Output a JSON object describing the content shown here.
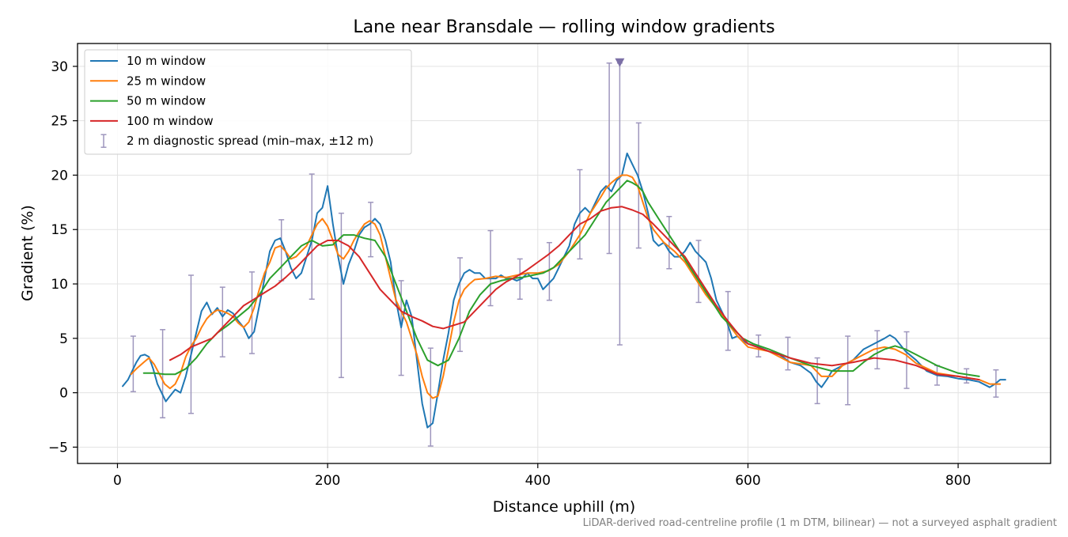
{
  "chart_data": {
    "type": "line",
    "title": "Lane near Bransdale — rolling window gradients",
    "xlabel": "Distance uphill (m)",
    "ylabel": "Gradient (%)",
    "xlim": [
      -38,
      888
    ],
    "ylim": [
      -6.5,
      32.1
    ],
    "xticks": [
      0,
      200,
      400,
      600,
      800
    ],
    "yticks": [
      -5,
      0,
      5,
      10,
      15,
      20,
      25,
      30
    ],
    "grid": true,
    "legend_position": "top-left",
    "footnote": "LiDAR-derived road-centreline profile (1 m DTM, bilinear) — not a surveyed asphalt gradient",
    "series": [
      {
        "name": "10 m window",
        "color": "#1f77b4",
        "x": [
          5,
          10,
          14,
          18,
          22,
          26,
          30,
          34,
          38,
          42,
          46,
          50,
          55,
          60,
          65,
          70,
          75,
          80,
          85,
          90,
          95,
          100,
          105,
          110,
          115,
          120,
          125,
          130,
          135,
          140,
          145,
          150,
          155,
          160,
          165,
          170,
          175,
          180,
          185,
          190,
          195,
          200,
          205,
          210,
          215,
          220,
          225,
          230,
          235,
          240,
          245,
          250,
          255,
          260,
          265,
          270,
          275,
          280,
          285,
          290,
          295,
          300,
          305,
          310,
          315,
          320,
          325,
          330,
          335,
          340,
          345,
          350,
          355,
          360,
          365,
          370,
          375,
          380,
          385,
          390,
          395,
          400,
          405,
          410,
          415,
          420,
          425,
          430,
          435,
          440,
          445,
          450,
          455,
          460,
          465,
          470,
          475,
          480,
          485,
          490,
          495,
          500,
          505,
          510,
          515,
          520,
          525,
          530,
          535,
          540,
          545,
          550,
          555,
          560,
          565,
          570,
          575,
          580,
          585,
          590,
          595,
          600,
          610,
          620,
          630,
          640,
          650,
          660,
          665,
          670,
          675,
          680,
          690,
          700,
          710,
          720,
          730,
          735,
          740,
          750,
          760,
          770,
          780,
          790,
          800,
          810,
          820,
          830,
          835,
          840,
          845
        ],
        "y": [
          0.6,
          1.2,
          2.0,
          2.8,
          3.4,
          3.5,
          3.3,
          2.2,
          0.8,
          0.0,
          -0.8,
          -0.3,
          0.3,
          0.0,
          1.5,
          3.5,
          5.5,
          7.5,
          8.3,
          7.2,
          7.8,
          7.0,
          7.6,
          7.3,
          6.6,
          6.0,
          5.0,
          5.6,
          8.0,
          10.5,
          13.0,
          14.0,
          14.2,
          13.0,
          11.5,
          10.5,
          11.0,
          12.5,
          14.0,
          16.5,
          17.0,
          19.0,
          15.5,
          12.5,
          10.0,
          11.8,
          13.0,
          14.5,
          15.2,
          15.5,
          16.0,
          15.5,
          14.0,
          12.0,
          8.5,
          6.0,
          8.5,
          7.0,
          3.0,
          -1.0,
          -3.2,
          -2.8,
          0.0,
          3.0,
          5.5,
          8.5,
          10.0,
          11.0,
          11.3,
          11.0,
          11.0,
          10.5,
          10.5,
          10.5,
          10.8,
          10.5,
          10.5,
          10.3,
          10.5,
          11.0,
          10.5,
          10.5,
          9.5,
          10.0,
          10.5,
          11.5,
          12.5,
          13.5,
          15.5,
          16.5,
          17.0,
          16.5,
          17.5,
          18.5,
          19.0,
          18.5,
          19.5,
          20.0,
          22.0,
          21.0,
          20.0,
          18.5,
          16.5,
          14.0,
          13.5,
          13.8,
          13.0,
          12.5,
          12.5,
          13.0,
          13.8,
          13.0,
          12.5,
          12.0,
          10.5,
          8.5,
          7.5,
          6.5,
          5.0,
          5.2,
          4.8,
          4.5,
          4.2,
          3.8,
          3.5,
          2.8,
          2.5,
          1.8,
          1.0,
          0.5,
          1.2,
          2.0,
          2.5,
          3.0,
          4.0,
          4.5,
          5.0,
          5.3,
          5.0,
          3.8,
          3.0,
          2.0,
          1.6,
          1.5,
          1.3,
          1.2,
          1.0,
          0.5,
          0.8,
          1.2,
          1.2
        ]
      },
      {
        "name": "25 m window",
        "color": "#ff7f0e",
        "x": [
          13,
          18,
          25,
          30,
          35,
          40,
          45,
          50,
          55,
          60,
          65,
          70,
          75,
          80,
          85,
          90,
          95,
          100,
          105,
          110,
          115,
          120,
          125,
          130,
          135,
          140,
          145,
          150,
          155,
          160,
          165,
          170,
          175,
          180,
          185,
          190,
          195,
          200,
          205,
          210,
          215,
          220,
          225,
          230,
          235,
          240,
          245,
          250,
          255,
          260,
          265,
          270,
          275,
          280,
          285,
          290,
          295,
          300,
          305,
          310,
          315,
          320,
          325,
          330,
          335,
          340,
          350,
          360,
          370,
          380,
          390,
          400,
          410,
          420,
          430,
          440,
          450,
          460,
          465,
          470,
          475,
          480,
          485,
          490,
          495,
          500,
          505,
          510,
          520,
          530,
          540,
          550,
          560,
          570,
          580,
          590,
          600,
          620,
          640,
          660,
          670,
          680,
          690,
          700,
          710,
          720,
          730,
          740,
          750,
          760,
          780,
          800,
          820,
          830,
          840
        ],
        "y": [
          1.7,
          2.2,
          2.8,
          3.2,
          2.6,
          1.7,
          0.8,
          0.4,
          0.8,
          1.8,
          3.3,
          4.3,
          5.0,
          6.0,
          6.8,
          7.3,
          7.6,
          7.5,
          7.3,
          7.0,
          6.4,
          6.0,
          6.5,
          7.8,
          9.5,
          11.0,
          12.0,
          13.3,
          13.5,
          13.0,
          12.3,
          12.5,
          13.0,
          13.5,
          14.5,
          15.5,
          16.0,
          15.3,
          14.0,
          12.7,
          12.3,
          13.0,
          14.0,
          14.8,
          15.5,
          15.8,
          15.5,
          14.5,
          12.5,
          10.5,
          8.5,
          7.5,
          6.5,
          5.0,
          3.5,
          1.5,
          0.0,
          -0.5,
          -0.3,
          1.5,
          4.0,
          6.5,
          8.5,
          9.5,
          10.0,
          10.4,
          10.5,
          10.7,
          10.6,
          10.8,
          11.0,
          11.0,
          11.2,
          11.8,
          13.0,
          14.5,
          16.5,
          18.0,
          18.8,
          19.3,
          19.7,
          20.0,
          20.0,
          19.8,
          19.0,
          17.5,
          16.0,
          15.0,
          13.8,
          13.0,
          12.0,
          10.5,
          9.0,
          7.8,
          6.5,
          5.2,
          4.2,
          3.8,
          2.8,
          2.5,
          1.5,
          1.5,
          2.5,
          3.0,
          3.5,
          4.0,
          4.2,
          4.0,
          3.5,
          2.7,
          1.8,
          1.5,
          1.2,
          0.8,
          0.8
        ]
      },
      {
        "name": "50 m window",
        "color": "#2ca02c",
        "x": [
          25,
          35,
          45,
          55,
          65,
          75,
          85,
          95,
          105,
          115,
          125,
          135,
          145,
          155,
          165,
          175,
          185,
          195,
          205,
          215,
          225,
          235,
          245,
          255,
          265,
          275,
          285,
          295,
          305,
          315,
          325,
          335,
          345,
          355,
          365,
          375,
          385,
          395,
          405,
          415,
          425,
          435,
          445,
          455,
          465,
          475,
          480,
          485,
          490,
          495,
          500,
          505,
          515,
          525,
          535,
          545,
          555,
          565,
          575,
          585,
          595,
          605,
          620,
          640,
          660,
          680,
          700,
          710,
          720,
          730,
          740,
          750,
          760,
          780,
          800,
          820
        ],
        "y": [
          1.8,
          1.8,
          1.7,
          1.7,
          2.2,
          3.2,
          4.5,
          5.5,
          6.2,
          7.0,
          7.8,
          9.0,
          10.5,
          11.5,
          12.5,
          13.5,
          14.0,
          13.5,
          13.6,
          14.5,
          14.5,
          14.2,
          14.0,
          12.5,
          10.0,
          7.5,
          5.0,
          3.0,
          2.5,
          3.0,
          5.0,
          7.5,
          9.0,
          10.0,
          10.3,
          10.5,
          10.6,
          10.8,
          11.0,
          11.5,
          12.5,
          13.5,
          14.5,
          16.0,
          17.5,
          18.5,
          19.0,
          19.5,
          19.3,
          19.0,
          18.5,
          17.5,
          16.0,
          14.5,
          13.0,
          11.5,
          10.0,
          8.5,
          7.0,
          6.0,
          5.0,
          4.5,
          4.0,
          3.2,
          2.5,
          2.0,
          2.0,
          2.8,
          3.5,
          4.0,
          4.3,
          4.0,
          3.5,
          2.5,
          1.8,
          1.5
        ]
      },
      {
        "name": "100 m window",
        "color": "#d62728",
        "x": [
          50,
          60,
          70,
          80,
          90,
          100,
          110,
          120,
          130,
          140,
          150,
          160,
          170,
          180,
          190,
          200,
          210,
          220,
          230,
          240,
          250,
          260,
          270,
          280,
          290,
          300,
          310,
          320,
          330,
          340,
          350,
          360,
          370,
          380,
          390,
          400,
          410,
          420,
          430,
          440,
          450,
          460,
          470,
          480,
          490,
          500,
          510,
          520,
          530,
          540,
          550,
          560,
          570,
          580,
          590,
          600,
          620,
          640,
          660,
          680,
          700,
          720,
          740,
          760,
          780,
          800,
          820
        ],
        "y": [
          3.0,
          3.5,
          4.2,
          4.6,
          5.0,
          6.0,
          7.0,
          8.0,
          8.6,
          9.2,
          9.8,
          10.6,
          11.5,
          12.5,
          13.5,
          14.0,
          14.0,
          13.5,
          12.5,
          11.0,
          9.5,
          8.5,
          7.5,
          7.0,
          6.6,
          6.1,
          5.9,
          6.2,
          6.5,
          7.5,
          8.5,
          9.5,
          10.2,
          10.7,
          11.3,
          12.0,
          12.7,
          13.5,
          14.5,
          15.5,
          16.0,
          16.7,
          17.0,
          17.1,
          16.8,
          16.4,
          15.5,
          14.5,
          13.5,
          12.5,
          11.0,
          9.5,
          8.0,
          6.7,
          5.5,
          4.5,
          3.8,
          3.2,
          2.7,
          2.5,
          2.8,
          3.2,
          3.0,
          2.5,
          1.7,
          1.5,
          1.2
        ]
      }
    ],
    "diagnostic_spread": {
      "name": "2 m diagnostic spread (min–max, ±12 m)",
      "color": "#9e96bd",
      "points": [
        {
          "x": 15,
          "low": 0.1,
          "high": 5.2
        },
        {
          "x": 43,
          "low": -2.3,
          "high": 5.8
        },
        {
          "x": 70,
          "low": -1.9,
          "high": 10.8
        },
        {
          "x": 100,
          "low": 3.3,
          "high": 9.7
        },
        {
          "x": 128,
          "low": 3.6,
          "high": 11.1
        },
        {
          "x": 156,
          "low": 10.3,
          "high": 15.9
        },
        {
          "x": 185,
          "low": 8.6,
          "high": 20.1
        },
        {
          "x": 213,
          "low": 1.4,
          "high": 16.5
        },
        {
          "x": 241,
          "low": 12.5,
          "high": 17.5
        },
        {
          "x": 270,
          "low": 1.6,
          "high": 10.3
        },
        {
          "x": 298,
          "low": -4.9,
          "high": 4.1
        },
        {
          "x": 326,
          "low": 3.8,
          "high": 12.4
        },
        {
          "x": 355,
          "low": 8.0,
          "high": 14.9
        },
        {
          "x": 383,
          "low": 8.6,
          "high": 12.3
        },
        {
          "x": 411,
          "low": 8.5,
          "high": 13.8
        },
        {
          "x": 440,
          "low": 12.3,
          "high": 20.5
        },
        {
          "x": 468,
          "low": 12.8,
          "high": 30.3
        },
        {
          "x": 478,
          "low": 4.4,
          "high": 30.3
        },
        {
          "x": 496,
          "low": 13.3,
          "high": 24.8
        },
        {
          "x": 525,
          "low": 11.4,
          "high": 16.2
        },
        {
          "x": 553,
          "low": 8.3,
          "high": 14.0
        },
        {
          "x": 581,
          "low": 3.9,
          "high": 9.3
        },
        {
          "x": 610,
          "low": 3.3,
          "high": 5.3
        },
        {
          "x": 638,
          "low": 2.1,
          "high": 5.1
        },
        {
          "x": 666,
          "low": -1.0,
          "high": 3.2
        },
        {
          "x": 695,
          "low": -1.1,
          "high": 5.2
        },
        {
          "x": 723,
          "low": 2.2,
          "high": 5.7
        },
        {
          "x": 751,
          "low": 0.4,
          "high": 5.6
        },
        {
          "x": 780,
          "low": 0.7,
          "high": 2.5
        },
        {
          "x": 808,
          "low": 0.9,
          "high": 2.2
        },
        {
          "x": 836,
          "low": -0.4,
          "high": 2.1
        }
      ]
    },
    "peak_marker": {
      "x": 478,
      "y": 30.3,
      "color": "#7b6fa6"
    }
  }
}
